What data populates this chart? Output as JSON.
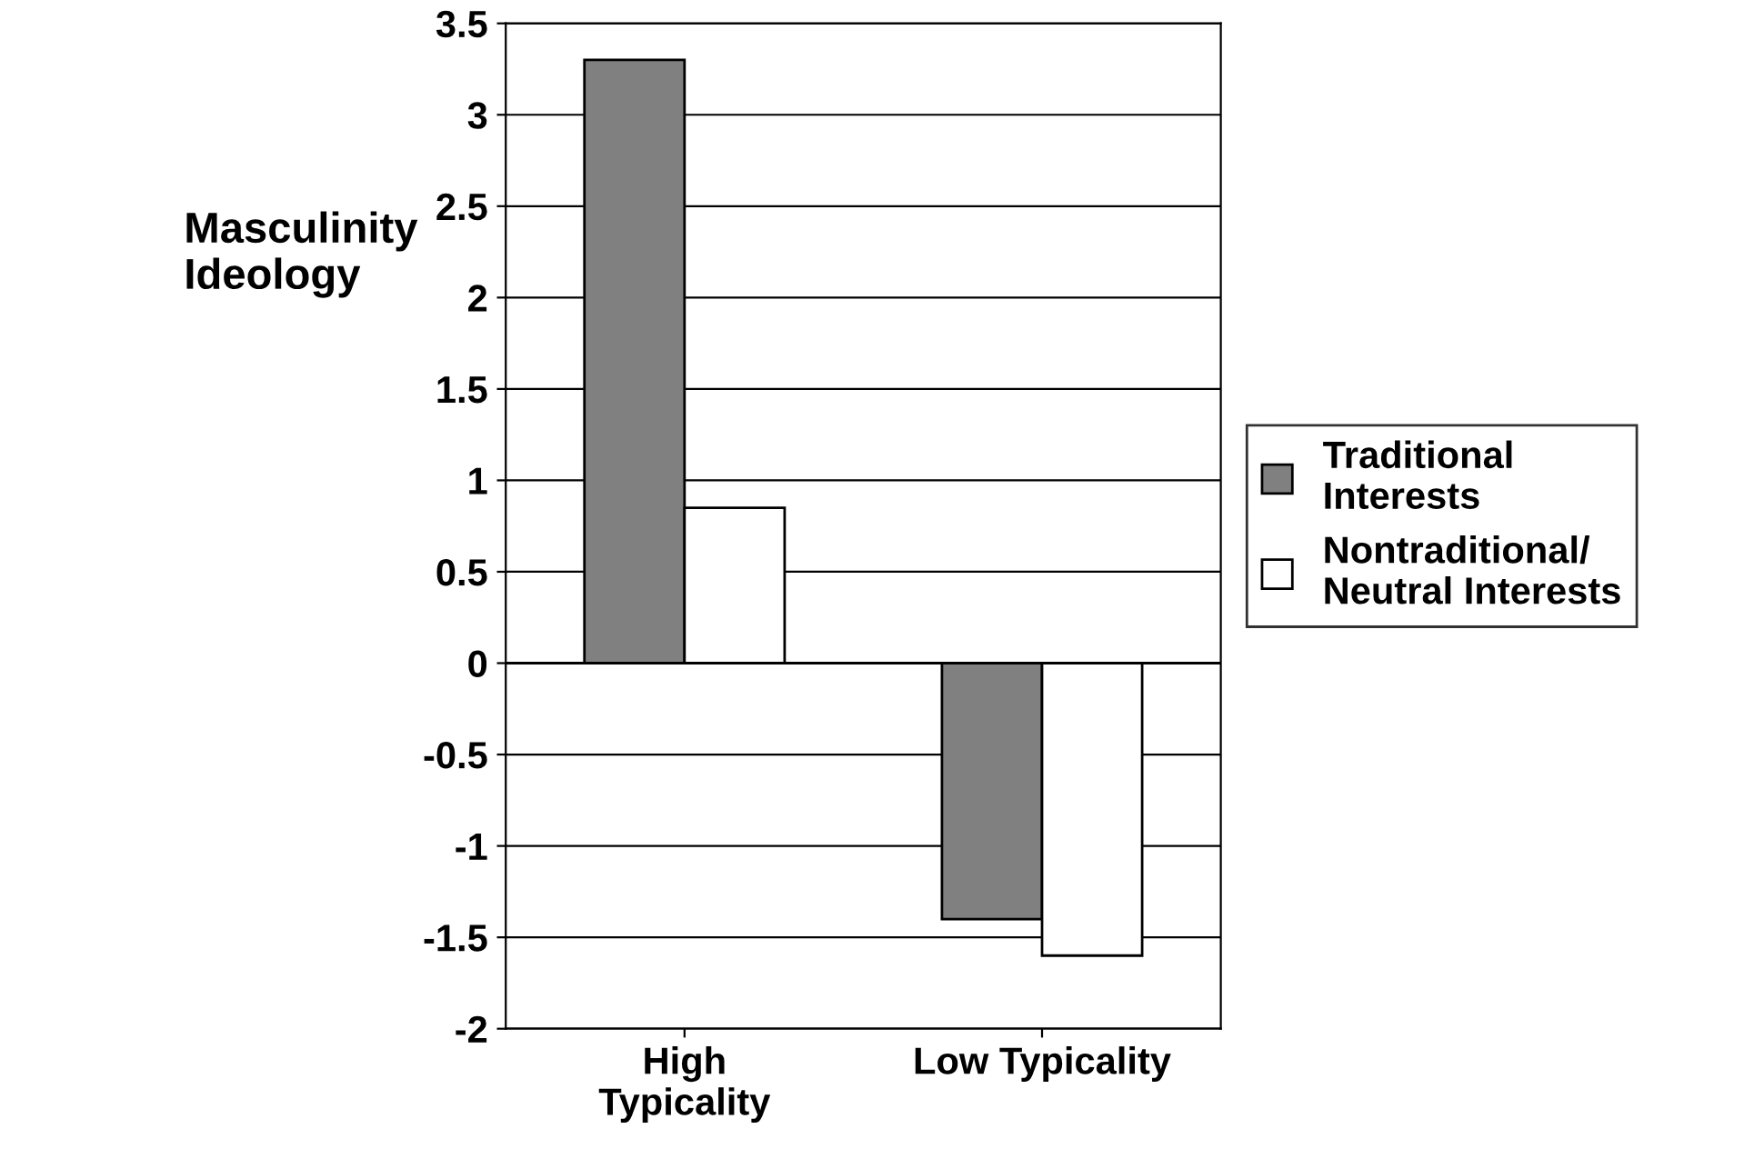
{
  "chart_data": {
    "type": "bar",
    "ylabel": "Masculinity\nIdeology",
    "categories": [
      "High\nTypicality",
      "Low Typicality"
    ],
    "series": [
      {
        "name": "Traditional\nInterests",
        "color": "#808080",
        "values": [
          3.3,
          -1.4
        ]
      },
      {
        "name": "Nontraditional/\nNeutral Interests",
        "color": "#ffffff",
        "values": [
          0.85,
          -1.6
        ]
      }
    ],
    "ylim": [
      -2,
      3.5
    ],
    "yticks": [
      -2,
      -1.5,
      -1,
      -0.5,
      0,
      0.5,
      1,
      1.5,
      2,
      2.5,
      3,
      3.5
    ],
    "grid": "y",
    "legend": "right"
  }
}
